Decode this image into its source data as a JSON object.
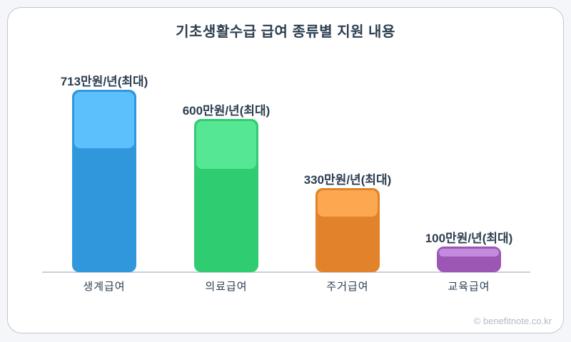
{
  "page": {
    "title": "기초생활수급 급여 종류별 지원 내용",
    "watermark": "© benefitnote.co.kr"
  },
  "chart_data": {
    "type": "bar",
    "title": "기초생활수급 급여 종류별 지원 내용",
    "categories": [
      "생계급여",
      "의료급여",
      "주거급여",
      "교육급여"
    ],
    "values": [
      713,
      600,
      330,
      100
    ],
    "value_labels": [
      "713만원/년(최대)",
      "600만원/년(최대)",
      "330만원/년(최대)",
      "100만원/년(최대)"
    ],
    "unit": "만원/년",
    "ylim": [
      0,
      713
    ],
    "grid": false,
    "legend": "none",
    "axis_color": "#c9d0d9",
    "label_color": "#2c3e50",
    "bar_colors": [
      {
        "body": "#3197dd",
        "cap": "#5bc0fb"
      },
      {
        "body": "#2fcc71",
        "cap": "#56e795"
      },
      {
        "body": "#e2822a",
        "cap": "#fca851"
      },
      {
        "body": "#9c57b5",
        "cap": "#c38bde"
      }
    ]
  }
}
